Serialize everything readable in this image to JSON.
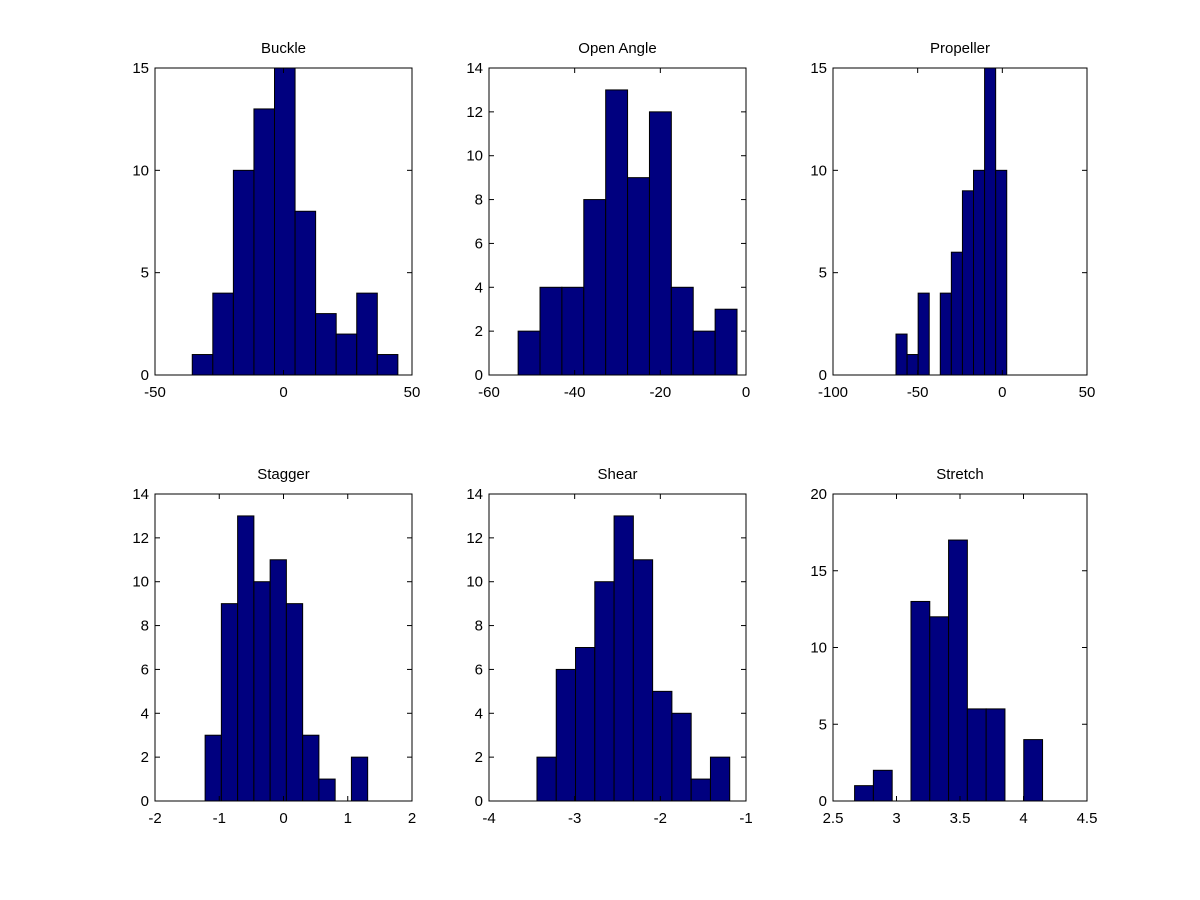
{
  "chart_data": [
    {
      "type": "bar",
      "title": "Buckle",
      "bin_start": -35.5,
      "bin_width": 8,
      "counts": [
        1,
        4,
        10,
        13,
        15,
        8,
        3,
        2,
        4,
        1
      ],
      "xlim": [
        -50,
        50
      ],
      "ylim": [
        0,
        15
      ],
      "xticks": [
        -50,
        0,
        50
      ],
      "yticks": [
        0,
        5,
        10,
        15
      ],
      "grid": false
    },
    {
      "type": "bar",
      "title": "Open Angle",
      "bin_start": -53.2,
      "bin_width": 5.11,
      "counts": [
        2,
        4,
        4,
        8,
        13,
        9,
        12,
        4,
        2,
        3
      ],
      "xlim": [
        -60,
        0
      ],
      "ylim": [
        0,
        14
      ],
      "xticks": [
        -60,
        -40,
        -20,
        0
      ],
      "yticks": [
        0,
        2,
        4,
        6,
        8,
        10,
        12,
        14
      ],
      "grid": false
    },
    {
      "type": "bar",
      "title": "Propeller",
      "bin_start": -62.8,
      "bin_width": 6.54,
      "counts": [
        2,
        1,
        4,
        0,
        4,
        6,
        9,
        10,
        15,
        10
      ],
      "xlim": [
        -100,
        50
      ],
      "ylim": [
        0,
        15
      ],
      "xticks": [
        -100,
        -50,
        0,
        50
      ],
      "yticks": [
        0,
        5,
        10,
        15
      ],
      "grid": false
    },
    {
      "type": "bar",
      "title": "Stagger",
      "bin_start": -1.22,
      "bin_width": 0.253,
      "counts": [
        3,
        9,
        13,
        10,
        11,
        9,
        3,
        1,
        0,
        2
      ],
      "xlim": [
        -2,
        2
      ],
      "ylim": [
        0,
        14
      ],
      "xticks": [
        -2,
        -1,
        0,
        1,
        2
      ],
      "yticks": [
        0,
        2,
        4,
        6,
        8,
        10,
        12,
        14
      ],
      "grid": false
    },
    {
      "type": "bar",
      "title": "Shear",
      "bin_start": -3.44,
      "bin_width": 0.225,
      "counts": [
        2,
        6,
        7,
        10,
        13,
        11,
        5,
        4,
        1,
        2
      ],
      "xlim": [
        -4,
        -1
      ],
      "ylim": [
        0,
        14
      ],
      "xticks": [
        -4,
        -3,
        -2,
        -1
      ],
      "yticks": [
        0,
        2,
        4,
        6,
        8,
        10,
        12,
        14
      ],
      "grid": false
    },
    {
      "type": "bar",
      "title": "Stretch",
      "bin_start": 2.67,
      "bin_width": 0.148,
      "counts": [
        1,
        2,
        0,
        13,
        12,
        17,
        6,
        6,
        0,
        4
      ],
      "xlim": [
        2.5,
        4.5
      ],
      "ylim": [
        0,
        20
      ],
      "xticks": [
        2.5,
        3,
        3.5,
        4,
        4.5
      ],
      "yticks": [
        0,
        5,
        10,
        15,
        20
      ],
      "grid": false
    }
  ],
  "colors": {
    "bar_fill": "#00007f",
    "bar_edge": "#000000",
    "axes": "#000000",
    "background": "#ffffff"
  }
}
